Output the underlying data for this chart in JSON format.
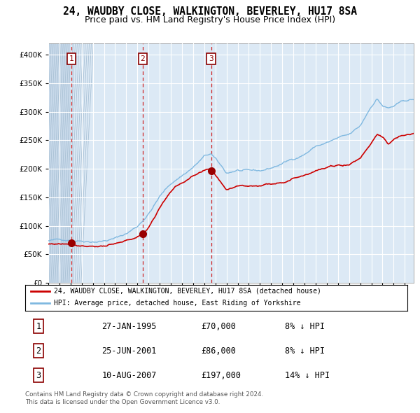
{
  "title": "24, WAUDBY CLOSE, WALKINGTON, BEVERLEY, HU17 8SA",
  "subtitle": "Price paid vs. HM Land Registry's House Price Index (HPI)",
  "legend_line1": "24, WAUDBY CLOSE, WALKINGTON, BEVERLEY, HU17 8SA (detached house)",
  "legend_line2": "HPI: Average price, detached house, East Riding of Yorkshire",
  "footnote": "Contains HM Land Registry data © Crown copyright and database right 2024.\nThis data is licensed under the Open Government Licence v3.0.",
  "transactions": [
    {
      "num": 1,
      "date": "27-JAN-1995",
      "price": 70000,
      "pct": "8%",
      "dir": "↓",
      "year": 1995.07
    },
    {
      "num": 2,
      "date": "25-JUN-2001",
      "price": 86000,
      "pct": "8%",
      "dir": "↓",
      "year": 2001.48
    },
    {
      "num": 3,
      "date": "10-AUG-2007",
      "price": 197000,
      "pct": "14%",
      "dir": "↓",
      "year": 2007.61
    }
  ],
  "hpi_color": "#7fb8e0",
  "price_color": "#cc0000",
  "marker_color": "#990000",
  "vline_color": "#cc0000",
  "bg_color": "#dce9f5",
  "grid_color": "#ffffff",
  "ylim": [
    0,
    420000
  ],
  "xlim_start": 1993.0,
  "xlim_end": 2025.8,
  "title_fontsize": 10.5,
  "subtitle_fontsize": 9
}
